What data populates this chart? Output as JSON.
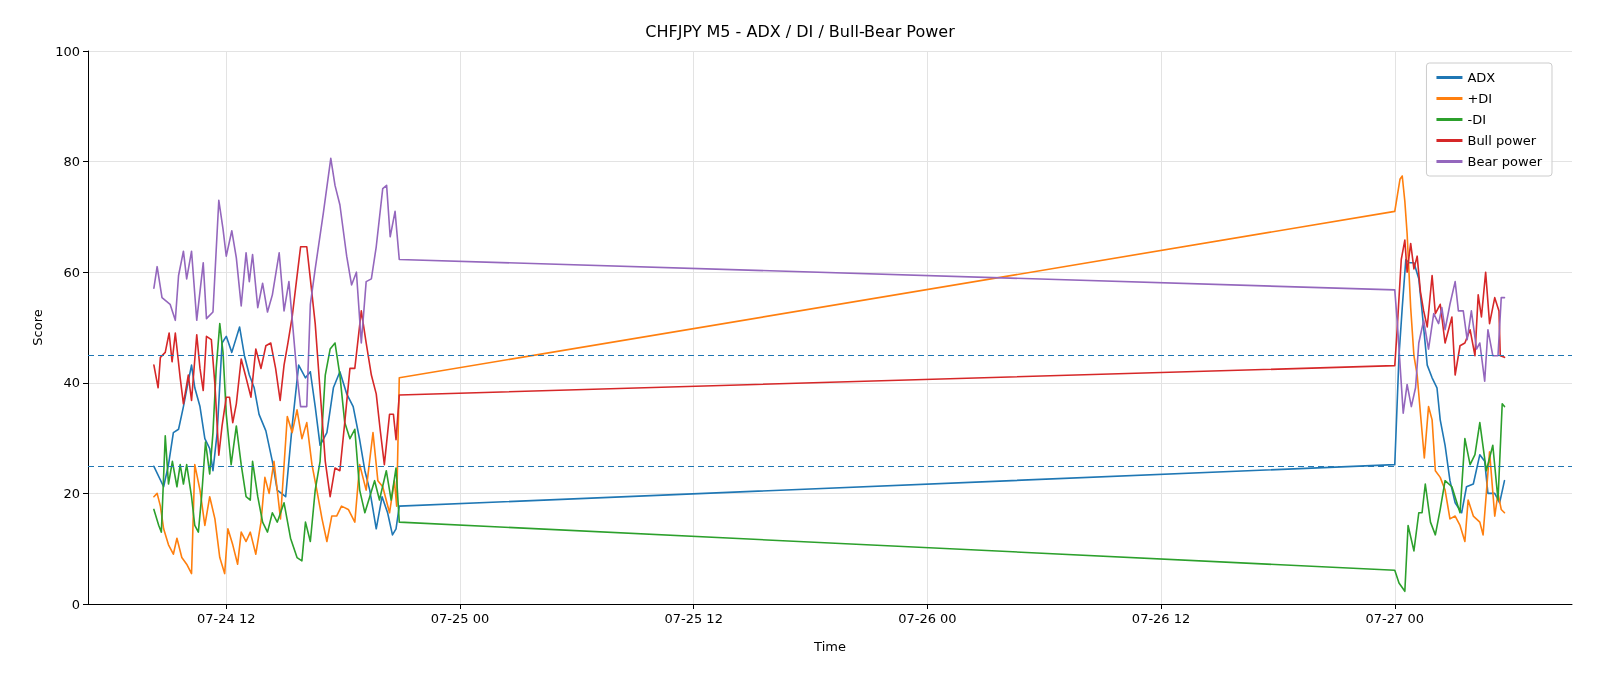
{
  "chart_data": {
    "type": "line",
    "title": "CHFJPY M5 - ADX / DI / Bull-Bear Power",
    "xlabel": "Time",
    "ylabel": "Score",
    "xlim": [
      "--07-24T04:54",
      "--07-27T09:06"
    ],
    "xticks": [
      {
        "value": "--07-24T12:00",
        "label": "07-24 12"
      },
      {
        "value": "--07-25T00:00",
        "label": "07-25 00"
      },
      {
        "value": "--07-25T12:00",
        "label": "07-25 12"
      },
      {
        "value": "--07-26T00:00",
        "label": "07-26 00"
      },
      {
        "value": "--07-26T12:00",
        "label": "07-26 12"
      },
      {
        "value": "--07-27T00:00",
        "label": "07-27 00"
      }
    ],
    "ylim": [
      0,
      100
    ],
    "yticks": [
      0,
      20,
      40,
      60,
      80,
      100
    ],
    "grid": true,
    "legend": "top right",
    "marker": "none",
    "line_style": "solid",
    "ref_lines": [
      {
        "axis": "y",
        "value": 45,
        "color": "#1f77b4",
        "line_style": "dashed"
      },
      {
        "axis": "y",
        "value": 25,
        "color": "#1f77b4",
        "line_style": "dashed"
      }
    ],
    "series": [
      {
        "name": "ADX",
        "color": "#1f77b4",
        "x": [
          "--07-24T08:17",
          "--07-24T08:47",
          "--07-24T09:02",
          "--07-24T09:17",
          "--07-24T09:33",
          "--07-24T09:48",
          "--07-24T10:03",
          "--07-24T10:13",
          "--07-24T10:23",
          "--07-24T10:39",
          "--07-24T10:54",
          "--07-24T11:09",
          "--07-24T11:19",
          "--07-24T11:32",
          "--07-24T11:47",
          "--07-24T12:00",
          "--07-24T12:17",
          "--07-24T12:41",
          "--07-24T12:56",
          "--07-24T13:11",
          "--07-24T13:26",
          "--07-24T13:41",
          "--07-24T14:02",
          "--07-24T14:22",
          "--07-24T14:37",
          "--07-24T15:03",
          "--07-24T15:23",
          "--07-24T15:43",
          "--07-24T16:04",
          "--07-24T16:19",
          "--07-24T16:34",
          "--07-24T16:49",
          "--07-24T17:10",
          "--07-24T17:30",
          "--07-24T17:50",
          "--07-24T18:11",
          "--07-24T18:31",
          "--07-24T18:51",
          "--07-24T19:07",
          "--07-24T19:22",
          "--07-24T19:42",
          "--07-24T20:00",
          "--07-24T20:17",
          "--07-24T20:32",
          "--07-24T20:43",
          "--07-24T20:53",
          "--07-27T00:00",
          "--07-27T00:13",
          "--07-27T00:23",
          "--07-27T00:34",
          "--07-27T00:44",
          "--07-27T00:59",
          "--07-27T01:14",
          "--07-27T01:24",
          "--07-27T01:40",
          "--07-27T01:55",
          "--07-27T02:10",
          "--07-27T02:20",
          "--07-27T02:35",
          "--07-27T02:50",
          "--07-27T03:06",
          "--07-27T03:26",
          "--07-27T03:41",
          "--07-27T04:02",
          "--07-27T04:22",
          "--07-27T04:37",
          "--07-27T04:47",
          "--07-27T05:08",
          "--07-27T05:23",
          "--07-27T05:38"
        ],
        "values": [
          24.9,
          21.2,
          25.2,
          31,
          31.6,
          35.7,
          40.3,
          43.2,
          39.1,
          35.7,
          29.9,
          28.1,
          24.1,
          31,
          47.2,
          48.4,
          45.5,
          50.1,
          44.9,
          41.4,
          39.1,
          34.3,
          31.3,
          25.8,
          20.6,
          19.4,
          32.2,
          43.2,
          40.9,
          42,
          35.7,
          28.7,
          31,
          39.1,
          42,
          38,
          35.7,
          29.7,
          24.1,
          20.6,
          13.6,
          19.4,
          16.5,
          12.5,
          13.6,
          17.7,
          25.2,
          44.9,
          53.6,
          62.3,
          61.7,
          61.7,
          58.8,
          53,
          43.2,
          40.9,
          39.1,
          33.3,
          28.7,
          22.3,
          18.3,
          16.5,
          21.2,
          21.7,
          27,
          25.8,
          20,
          20,
          18.3,
          22.3
        ]
      },
      {
        "name": "+DI",
        "color": "#ff7f0e",
        "x": [
          "--07-24T08:17",
          "--07-24T08:27",
          "--07-24T08:37",
          "--07-24T08:47",
          "--07-24T09:02",
          "--07-24T09:17",
          "--07-24T09:28",
          "--07-24T09:43",
          "--07-24T09:58",
          "--07-24T10:13",
          "--07-24T10:23",
          "--07-24T10:39",
          "--07-24T10:54",
          "--07-24T11:09",
          "--07-24T11:25",
          "--07-24T11:40",
          "--07-24T11:55",
          "--07-24T12:05",
          "--07-24T12:20",
          "--07-24T12:35",
          "--07-24T12:46",
          "--07-24T13:01",
          "--07-24T13:14",
          "--07-24T13:31",
          "--07-24T13:47",
          "--07-24T13:59",
          "--07-24T14:12",
          "--07-24T14:27",
          "--07-24T14:47",
          "--07-24T15:08",
          "--07-24T15:23",
          "--07-24T15:38",
          "--07-24T15:53",
          "--07-24T16:08",
          "--07-24T16:24",
          "--07-24T16:39",
          "--07-24T16:55",
          "--07-24T17:10",
          "--07-24T17:25",
          "--07-24T17:40",
          "--07-24T17:55",
          "--07-24T18:16",
          "--07-24T18:36",
          "--07-24T18:51",
          "--07-24T19:11",
          "--07-24T19:32",
          "--07-24T19:47",
          "--07-24T20:02",
          "--07-24T20:23",
          "--07-24T20:38",
          "--07-24T20:45",
          "--07-24T20:53",
          "--07-27T00:00",
          "--07-27T00:08",
          "--07-27T00:16",
          "--07-27T00:23",
          "--07-27T00:31",
          "--07-27T00:38",
          "--07-27T00:49",
          "--07-27T00:59",
          "--07-27T01:09",
          "--07-27T01:19",
          "--07-27T01:31",
          "--07-27T01:44",
          "--07-27T01:55",
          "--07-27T02:05",
          "--07-27T02:20",
          "--07-27T02:35",
          "--07-27T02:50",
          "--07-27T03:06",
          "--07-27T03:21",
          "--07-27T03:36",
          "--07-27T03:46",
          "--07-27T04:02",
          "--07-27T04:22",
          "--07-27T04:32",
          "--07-27T04:42",
          "--07-27T04:52",
          "--07-27T05:08",
          "--07-27T05:18",
          "--07-27T05:28",
          "--07-27T05:38"
        ],
        "values": [
          19.4,
          20,
          17.7,
          13.6,
          10.7,
          9,
          11.9,
          8.4,
          7.2,
          5.5,
          25.2,
          20.6,
          14.2,
          19.4,
          15.4,
          8.4,
          5.5,
          13.6,
          10.7,
          7.2,
          13,
          11.3,
          13,
          9,
          14.8,
          22.9,
          20,
          25.8,
          15.4,
          33.9,
          31,
          35.1,
          29.9,
          32.8,
          25.2,
          20.6,
          15.4,
          11.3,
          15.9,
          15.9,
          17.7,
          17.1,
          14.8,
          25.2,
          20.6,
          31,
          22.3,
          21.2,
          16.5,
          22.3,
          17.7,
          40.9,
          71,
          73.9,
          76.8,
          77.4,
          72.8,
          67,
          53.6,
          44.9,
          41.4,
          34.5,
          26.4,
          35.7,
          33.3,
          24.1,
          22.9,
          20.6,
          15.4,
          15.9,
          14.2,
          11.3,
          18.8,
          15.9,
          14.8,
          12.5,
          20,
          27.5,
          15.9,
          20,
          17.1,
          16.5
        ]
      },
      {
        "name": "-DI",
        "color": "#2ca02c",
        "x": [
          "--07-24T08:17",
          "--07-24T08:32",
          "--07-24T08:40",
          "--07-24T08:52",
          "--07-24T09:02",
          "--07-24T09:14",
          "--07-24T09:28",
          "--07-24T09:38",
          "--07-24T09:48",
          "--07-24T09:58",
          "--07-24T10:13",
          "--07-24T10:23",
          "--07-24T10:34",
          "--07-24T10:44",
          "--07-24T10:56",
          "--07-24T11:09",
          "--07-24T11:19",
          "--07-24T11:29",
          "--07-24T11:40",
          "--07-24T11:50",
          "--07-24T12:00",
          "--07-24T12:15",
          "--07-24T12:31",
          "--07-24T12:46",
          "--07-24T13:01",
          "--07-24T13:14",
          "--07-24T13:21",
          "--07-24T13:37",
          "--07-24T13:52",
          "--07-24T14:07",
          "--07-24T14:22",
          "--07-24T14:37",
          "--07-24T14:58",
          "--07-24T15:18",
          "--07-24T15:38",
          "--07-24T15:53",
          "--07-24T16:04",
          "--07-24T16:19",
          "--07-24T16:34",
          "--07-24T16:49",
          "--07-24T17:05",
          "--07-24T17:20",
          "--07-24T17:35",
          "--07-24T17:50",
          "--07-24T18:05",
          "--07-24T18:21",
          "--07-24T18:36",
          "--07-24T18:51",
          "--07-24T19:07",
          "--07-24T19:22",
          "--07-24T19:37",
          "--07-24T19:52",
          "--07-24T20:13",
          "--07-24T20:28",
          "--07-24T20:43",
          "--07-24T20:53",
          "--07-27T00:00",
          "--07-27T00:13",
          "--07-27T00:31",
          "--07-27T00:41",
          "--07-27T00:59",
          "--07-27T01:14",
          "--07-27T01:24",
          "--07-27T01:34",
          "--07-27T01:50",
          "--07-27T02:05",
          "--07-27T02:20",
          "--07-27T02:35",
          "--07-27T02:56",
          "--07-27T03:21",
          "--07-27T03:36",
          "--07-27T03:52",
          "--07-27T04:07",
          "--07-27T04:22",
          "--07-27T04:42",
          "--07-27T05:02",
          "--07-27T05:18",
          "--07-27T05:31",
          "--07-27T05:38"
        ],
        "values": [
          17.1,
          14.2,
          13,
          30.4,
          21.7,
          25.8,
          21.2,
          25.2,
          21.7,
          25.2,
          19.4,
          14.2,
          13,
          19.4,
          29.3,
          23.5,
          31,
          42.6,
          50.7,
          45.5,
          34.3,
          25.2,
          32.2,
          25.2,
          19.4,
          18.8,
          25.8,
          19.4,
          14.8,
          13,
          16.5,
          14.8,
          18.3,
          11.9,
          8.4,
          7.8,
          14.8,
          11.3,
          20.6,
          25.8,
          41.4,
          46.1,
          47.2,
          41.4,
          32.8,
          29.9,
          31.6,
          20.6,
          16.5,
          19.4,
          22.3,
          18.8,
          24.1,
          18.8,
          24.6,
          14.8,
          6.1,
          3.8,
          2.3,
          14.2,
          9.6,
          16.5,
          16.5,
          21.7,
          14.8,
          12.5,
          17.1,
          22.3,
          21.2,
          16.5,
          29.9,
          25.2,
          27,
          32.8,
          24.1,
          28.7,
          18.8,
          36.2,
          35.7
        ]
      },
      {
        "name": "Bull power",
        "color": "#d62728",
        "x": [
          "--07-24T08:17",
          "--07-24T08:30",
          "--07-24T08:37",
          "--07-24T08:52",
          "--07-24T09:04",
          "--07-24T09:13",
          "--07-24T09:23",
          "--07-24T09:38",
          "--07-24T09:48",
          "--07-24T10:03",
          "--07-24T10:13",
          "--07-24T10:29",
          "--07-24T10:39",
          "--07-24T10:49",
          "--07-24T10:59",
          "--07-24T11:14",
          "--07-24T11:25",
          "--07-24T11:37",
          "--07-24T11:47",
          "--07-24T12:00",
          "--07-24T12:10",
          "--07-24T12:20",
          "--07-24T12:31",
          "--07-24T12:46",
          "--07-24T13:01",
          "--07-24T13:16",
          "--07-24T13:31",
          "--07-24T13:47",
          "--07-24T14:02",
          "--07-24T14:17",
          "--07-24T14:32",
          "--07-24T14:46",
          "--07-24T14:58",
          "--07-24T15:10",
          "--07-24T15:23",
          "--07-24T15:36",
          "--07-24T15:49",
          "--07-24T16:08",
          "--07-24T16:19",
          "--07-24T16:34",
          "--07-24T16:49",
          "--07-24T17:05",
          "--07-24T17:20",
          "--07-24T17:35",
          "--07-24T17:50",
          "--07-24T18:05",
          "--07-24T18:21",
          "--07-24T18:36",
          "--07-24T18:56",
          "--07-24T19:11",
          "--07-24T19:27",
          "--07-24T19:42",
          "--07-24T19:54",
          "--07-24T20:07",
          "--07-24T20:23",
          "--07-24T20:35",
          "--07-24T20:43",
          "--07-24T20:53",
          "--07-27T00:00",
          "--07-27T00:06",
          "--07-27T00:20",
          "--07-27T00:31",
          "--07-27T00:38",
          "--07-27T00:49",
          "--07-27T00:59",
          "--07-27T01:09",
          "--07-27T01:19",
          "--07-27T01:29",
          "--07-27T01:40",
          "--07-27T01:55",
          "--07-27T02:05",
          "--07-27T02:20",
          "--07-27T02:35",
          "--07-27T02:56",
          "--07-27T03:06",
          "--07-27T03:21",
          "--07-27T03:36",
          "--07-27T03:52",
          "--07-27T04:07",
          "--07-27T04:17",
          "--07-27T04:27",
          "--07-27T04:40",
          "--07-27T04:52",
          "--07-27T05:08",
          "--07-27T05:21",
          "--07-27T05:25",
          "--07-27T05:38"
        ],
        "values": [
          43.2,
          39.1,
          44.6,
          45.5,
          49,
          43.8,
          49,
          40.9,
          36.2,
          41.4,
          36.8,
          48.7,
          42.6,
          38.6,
          48.4,
          47.8,
          39.7,
          26.9,
          32.2,
          37.4,
          37.4,
          32.8,
          36.2,
          44.3,
          40.9,
          37.4,
          46.1,
          42.6,
          46.7,
          47.2,
          42.6,
          36.8,
          43.2,
          47.2,
          51.9,
          58.3,
          64.6,
          64.6,
          58.8,
          50.7,
          38.6,
          25.8,
          19.4,
          24.6,
          24.1,
          32.8,
          42.6,
          42.6,
          53,
          47.2,
          41.4,
          38,
          31.6,
          25.2,
          34.3,
          34.3,
          29.7,
          37.8,
          43.1,
          48.4,
          62.3,
          65.8,
          60,
          65.2,
          60.6,
          62.9,
          56.5,
          53,
          50.1,
          59.4,
          52.5,
          54.2,
          47.2,
          51.9,
          41.4,
          46.7,
          47.2,
          49.6,
          44.9,
          55.9,
          51.9,
          60,
          50.7,
          55.4,
          53,
          44.9,
          44.6
        ]
      },
      {
        "name": "Bear power",
        "color": "#9467bd",
        "x": [
          "--07-24T08:17",
          "--07-24T08:27",
          "--07-24T08:42",
          "--07-24T09:07",
          "--07-24T09:23",
          "--07-24T09:33",
          "--07-24T09:48",
          "--07-24T09:58",
          "--07-24T10:13",
          "--07-24T10:29",
          "--07-24T10:49",
          "--07-24T10:59",
          "--07-24T11:19",
          "--07-24T11:37",
          "--07-24T11:50",
          "--07-24T12:00",
          "--07-24T12:17",
          "--07-24T12:31",
          "--07-24T12:46",
          "--07-24T13:01",
          "--07-24T13:11",
          "--07-24T13:21",
          "--07-24T13:37",
          "--07-24T13:52",
          "--07-24T14:07",
          "--07-24T14:22",
          "--07-24T14:43",
          "--07-24T14:58",
          "--07-24T15:13",
          "--07-24T15:38",
          "--07-24T15:49",
          "--07-24T16:08",
          "--07-24T16:19",
          "--07-24T16:34",
          "--07-24T16:59",
          "--07-24T17:22",
          "--07-24T17:35",
          "--07-24T17:50",
          "--07-24T18:11",
          "--07-24T18:26",
          "--07-24T18:41",
          "--07-24T18:56",
          "--07-24T19:11",
          "--07-24T19:27",
          "--07-24T19:42",
          "--07-24T20:02",
          "--07-24T20:14",
          "--07-24T20:25",
          "--07-24T20:40",
          "--07-24T20:53",
          "--07-27T00:00",
          "--07-27T00:08",
          "--07-27T00:26",
          "--07-27T00:38",
          "--07-27T00:51",
          "--07-27T01:04",
          "--07-27T01:14",
          "--07-27T01:29",
          "--07-27T01:44",
          "--07-27T02:00",
          "--07-27T02:15",
          "--07-27T02:25",
          "--07-27T02:35",
          "--07-27T02:50",
          "--07-27T03:06",
          "--07-27T03:16",
          "--07-27T03:31",
          "--07-27T03:43",
          "--07-27T03:56",
          "--07-27T04:12",
          "--07-27T04:22",
          "--07-27T04:37",
          "--07-27T04:47",
          "--07-27T05:02",
          "--07-27T05:18",
          "--07-27T05:28",
          "--07-27T05:38"
        ],
        "values": [
          57.1,
          61,
          55.4,
          54.2,
          51.3,
          59.4,
          63.8,
          58.8,
          63.8,
          51.3,
          61.7,
          51.6,
          52.8,
          73,
          67.8,
          62.9,
          67.5,
          62.6,
          53.9,
          63.5,
          58.3,
          63.2,
          53.6,
          58,
          52.8,
          55.9,
          63.5,
          53,
          58.3,
          41.4,
          35.7,
          35.7,
          54.2,
          60.6,
          70.7,
          80.6,
          75.7,
          72.2,
          62.9,
          57.7,
          60,
          47.2,
          58.3,
          58.8,
          64.6,
          75.1,
          75.7,
          66.4,
          71,
          62.3,
          56.8,
          50.7,
          34.5,
          39.7,
          35.7,
          39.1,
          47.2,
          51.3,
          46.1,
          52.5,
          50.7,
          53.6,
          49.6,
          54.2,
          58.3,
          53,
          53,
          47.8,
          53,
          46.1,
          47.2,
          40.3,
          49.6,
          44.9,
          44.9,
          55.4,
          55.4
        ]
      }
    ]
  }
}
